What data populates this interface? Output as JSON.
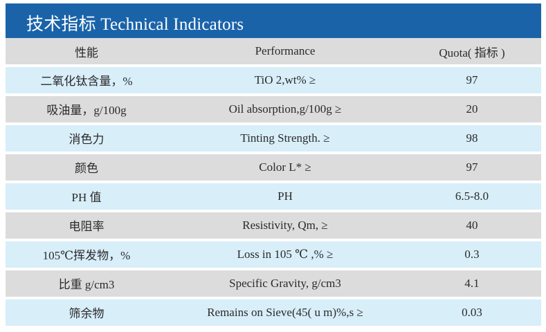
{
  "title": "技术指标 Technical Indicators",
  "colors": {
    "title_bar": "#1a63a9",
    "row_light": "#d8eef9",
    "row_gray": "#dcdcdc"
  },
  "header": {
    "property": "性能",
    "performance": "Performance",
    "quota": "Quota( 指标 )"
  },
  "rows": [
    {
      "property": "二氧化钛含量，%",
      "performance": "TiO 2,wt% ≥",
      "quota": "97"
    },
    {
      "property": "吸油量，g/100g",
      "performance": "Oil absorption,g/100g ≥",
      "quota": "20"
    },
    {
      "property": "消色力",
      "performance": "Tinting Strength. ≥",
      "quota": "98"
    },
    {
      "property": "颜色",
      "performance": "Color L* ≥",
      "quota": "97"
    },
    {
      "property": "PH 值",
      "performance": "PH",
      "quota": "6.5-8.0"
    },
    {
      "property": "电阻率",
      "performance": "Resistivity, Qm, ≥",
      "quota": "40"
    },
    {
      "property": "105℃挥发物，%",
      "performance": "Loss in 105 ℃ ,% ≥",
      "quota": "0.3"
    },
    {
      "property": "比重 g/cm3",
      "performance": "Specific Gravity, g/cm3",
      "quota": "4.1"
    },
    {
      "property": "筛余物",
      "performance": "Remains on Sieve(45( u m)%,s ≥",
      "quota": "0.03"
    }
  ]
}
